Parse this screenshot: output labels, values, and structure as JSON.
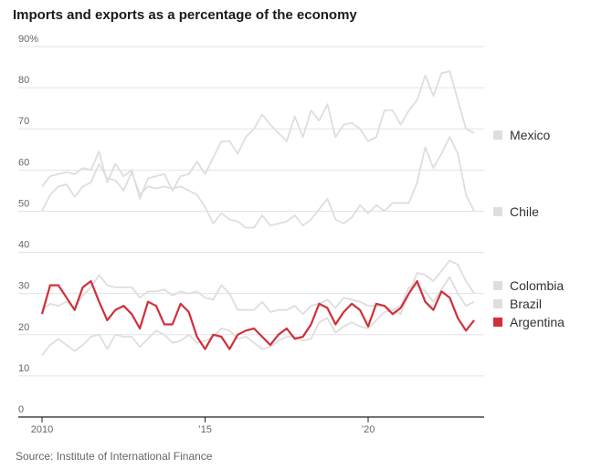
{
  "chart_data": {
    "type": "line",
    "title": "Imports and exports as a percentage of the economy",
    "source": "Source: Institute of International Finance",
    "ylim": [
      0,
      90
    ],
    "xlim": [
      2010,
      2023.4
    ],
    "y_ticks": [
      0,
      10,
      20,
      30,
      40,
      50,
      60,
      70,
      80,
      90
    ],
    "y_tick_labels": [
      "0",
      "10",
      "20",
      "30",
      "40",
      "50",
      "60",
      "70",
      "80",
      "90%"
    ],
    "x_ticks": [
      2010,
      2015,
      2020
    ],
    "x_tick_labels": [
      "2010",
      "’15",
      "’20"
    ],
    "grid": true,
    "legend": "right",
    "x": [
      2010.0,
      2010.25,
      2010.5,
      2010.75,
      2011.0,
      2011.25,
      2011.5,
      2011.75,
      2012.0,
      2012.25,
      2012.5,
      2012.75,
      2013.0,
      2013.25,
      2013.5,
      2013.75,
      2014.0,
      2014.25,
      2014.5,
      2014.75,
      2015.0,
      2015.25,
      2015.5,
      2015.75,
      2016.0,
      2016.25,
      2016.5,
      2016.75,
      2017.0,
      2017.25,
      2017.5,
      2017.75,
      2018.0,
      2018.25,
      2018.5,
      2018.75,
      2019.0,
      2019.25,
      2019.5,
      2019.75,
      2020.0,
      2020.25,
      2020.5,
      2020.75,
      2021.0,
      2021.25,
      2021.5,
      2021.75,
      2022.0,
      2022.25,
      2022.5,
      2022.75,
      2023.0,
      2023.25
    ],
    "series": [
      {
        "name": "Mexico",
        "color": "#dedede",
        "values": [
          56,
          58.5,
          59,
          59.5,
          59,
          60.5,
          60,
          64.5,
          57,
          61.5,
          58.5,
          60,
          53,
          58,
          58.5,
          59,
          55,
          58.5,
          59,
          62,
          59,
          63,
          67,
          67,
          64,
          68,
          70,
          73.5,
          71,
          69,
          67,
          73,
          68,
          74.5,
          72,
          76,
          68,
          71,
          71.5,
          70,
          67,
          68,
          74.5,
          74.5,
          71,
          74.5,
          77,
          83,
          78,
          83.5,
          84,
          77,
          70,
          69
        ]
      },
      {
        "name": "Chile",
        "color": "#dedede",
        "values": [
          50,
          54,
          56,
          56.5,
          53.5,
          56,
          57,
          61.5,
          58,
          57.5,
          55,
          59.5,
          54,
          56,
          55.5,
          56,
          55.5,
          56,
          55,
          54,
          51,
          47,
          49.5,
          48,
          47.5,
          46,
          46,
          49,
          46.5,
          47,
          47.5,
          49,
          46.5,
          48,
          50.5,
          53,
          48,
          47,
          48.5,
          51.5,
          49.5,
          51.5,
          50,
          52,
          52,
          52,
          57,
          65.5,
          60.5,
          64,
          68,
          64,
          54,
          50
        ]
      },
      {
        "name": "Colombia",
        "color": "#dedede",
        "values": [
          26,
          27.5,
          27,
          28,
          26.5,
          29.5,
          31.5,
          34.5,
          32,
          31.5,
          31.5,
          31.5,
          29,
          30.5,
          30.5,
          31,
          29.5,
          30.5,
          30,
          30.5,
          29,
          28.5,
          32,
          30,
          26,
          26,
          26,
          28,
          25.5,
          26,
          26,
          27,
          25,
          27,
          27.5,
          28.5,
          26.5,
          29,
          28.5,
          28,
          27,
          27,
          27,
          26,
          25,
          30,
          35,
          34.5,
          33,
          35.5,
          38,
          37,
          33,
          30
        ]
      },
      {
        "name": "Brazil",
        "color": "#dedede",
        "values": [
          15,
          17.5,
          19,
          17.5,
          16,
          17.5,
          19.5,
          20,
          16.5,
          20,
          19.5,
          19.5,
          17,
          19,
          21,
          20,
          18,
          18.5,
          20,
          18,
          18.5,
          19.5,
          21.5,
          21,
          19,
          19.5,
          18,
          16.5,
          17,
          18.5,
          19.5,
          19.5,
          18.5,
          19,
          23,
          24,
          20.5,
          22,
          23,
          22,
          21.5,
          23.5,
          25.5,
          26,
          27,
          31.5,
          32,
          30.5,
          28,
          31,
          34,
          30,
          27,
          28
        ]
      },
      {
        "name": "Argentina",
        "color": "#d12f3a",
        "values": [
          25,
          32,
          32,
          29,
          26,
          31.5,
          33,
          28,
          23.5,
          26,
          27,
          25,
          21.5,
          28,
          27,
          22.5,
          22.5,
          27.5,
          25.5,
          19.5,
          16.5,
          20,
          19.5,
          16.5,
          20,
          21,
          21.5,
          19.5,
          17.5,
          20,
          21.5,
          19,
          19.5,
          22.5,
          27.5,
          26.5,
          22.5,
          25.5,
          27.5,
          26,
          22,
          27.5,
          27,
          25,
          26.5,
          30,
          33,
          28,
          26,
          30.5,
          29,
          24,
          21,
          23.5
        ]
      }
    ]
  }
}
